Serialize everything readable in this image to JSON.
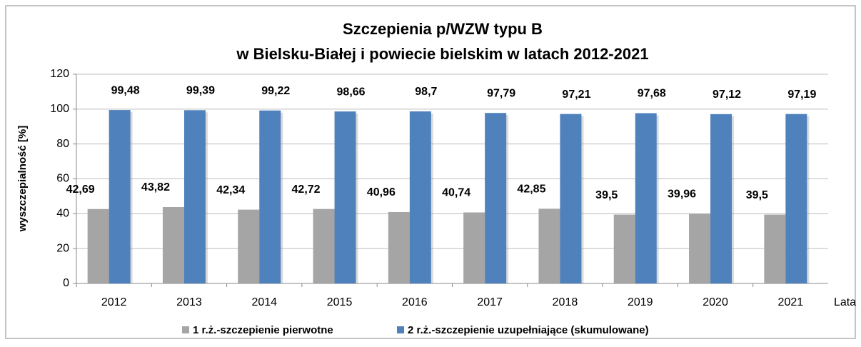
{
  "chart_data": {
    "type": "bar",
    "title": [
      "Szczepienia p/WZW typu B",
      "w Bielsku-Białej i powiecie bielskim w latach 2012-2021"
    ],
    "xlabel": "Lata",
    "ylabel": "wyszczepialność [%]",
    "categories": [
      "2012",
      "2013",
      "2014",
      "2015",
      "2016",
      "2017",
      "2018",
      "2019",
      "2020",
      "2021"
    ],
    "series": [
      {
        "name": "1 r.ż.-szczepienie pierwotne",
        "color": "#a5a5a5",
        "values": [
          42.69,
          43.82,
          42.34,
          42.72,
          40.96,
          40.74,
          42.85,
          39.5,
          39.96,
          39.5
        ],
        "value_labels": [
          "42,69",
          "43,82",
          "42,34",
          "42,72",
          "40,96",
          "40,74",
          "42,85",
          "39,5",
          "39,96",
          "39,5"
        ]
      },
      {
        "name": "2 r.ż.-szczepienie uzupełniające (skumulowane)",
        "color": "#4f81bd",
        "values": [
          99.48,
          99.39,
          99.22,
          98.66,
          98.7,
          97.79,
          97.21,
          97.68,
          97.12,
          97.19
        ],
        "value_labels": [
          "99,48",
          "99,39",
          "99,22",
          "98,66",
          "98,7",
          "97,79",
          "97,21",
          "97,68",
          "97,12",
          "97,19"
        ]
      }
    ],
    "ylim": [
      0,
      120
    ],
    "yticks": [
      0,
      20,
      40,
      60,
      80,
      100,
      120
    ],
    "grid": true,
    "legend": "bottom"
  }
}
